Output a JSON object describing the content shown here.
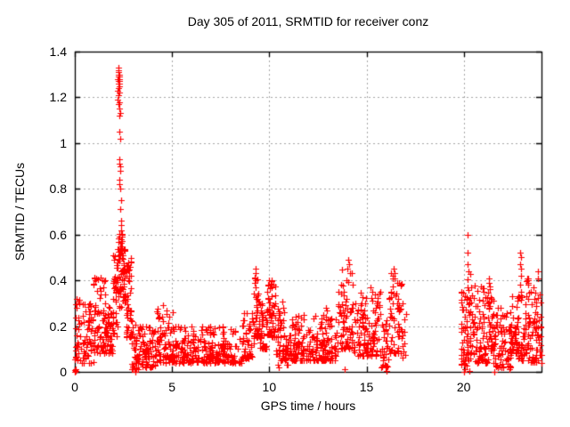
{
  "chart_data": {
    "type": "scatter",
    "title": "Day 305 of 2011, SRMTID for receiver conz",
    "xlabel": "GPS time / hours",
    "ylabel": "SRMTID / TECUs",
    "xlim": [
      0,
      24
    ],
    "ylim": [
      0,
      1.4
    ],
    "xticks": [
      [
        0,
        "0"
      ],
      [
        5,
        "5"
      ],
      [
        10,
        "10"
      ],
      [
        15,
        "15"
      ],
      [
        20,
        "20"
      ]
    ],
    "yticks": [
      [
        0,
        "0"
      ],
      [
        0.2,
        "0.2"
      ],
      [
        0.4,
        "0.4"
      ],
      [
        0.6,
        "0.6"
      ],
      [
        0.8,
        "0.8"
      ],
      [
        1,
        "1"
      ],
      [
        1.2,
        "1.2"
      ],
      [
        1.4,
        "1.4"
      ]
    ],
    "grid": true,
    "legend": "none",
    "marker": {
      "symbol": "plus",
      "color": "#ff0000",
      "size": 7,
      "stroke": 1.2
    },
    "data_gaps": [
      [
        17.0,
        19.85
      ]
    ],
    "seed": 7,
    "band_segments": [
      [
        0.0,
        0.35,
        30,
        0.05,
        0.33,
        1.5
      ],
      [
        0.35,
        0.95,
        55,
        0.04,
        0.3,
        1.8
      ],
      [
        0.95,
        1.6,
        70,
        0.08,
        0.42,
        1.8
      ],
      [
        1.6,
        1.95,
        40,
        0.08,
        0.3,
        1.5
      ],
      [
        1.95,
        2.18,
        35,
        0.15,
        0.52,
        1.3
      ],
      [
        2.18,
        2.42,
        40,
        0.28,
        0.62,
        1.2
      ],
      [
        2.42,
        2.62,
        35,
        0.3,
        0.55,
        1.2
      ],
      [
        2.62,
        2.92,
        45,
        0.15,
        0.5,
        1.4
      ],
      [
        2.92,
        3.35,
        45,
        0.01,
        0.22,
        1.5
      ],
      [
        3.35,
        4.2,
        70,
        0.02,
        0.2,
        1.6
      ],
      [
        4.2,
        5.05,
        75,
        0.04,
        0.3,
        1.8
      ],
      [
        5.05,
        8.6,
        260,
        0.04,
        0.2,
        1.8
      ],
      [
        8.6,
        9.2,
        50,
        0.06,
        0.26,
        1.6
      ],
      [
        9.2,
        9.5,
        35,
        0.15,
        0.44,
        1.4
      ],
      [
        9.5,
        9.85,
        35,
        0.1,
        0.3,
        1.5
      ],
      [
        9.85,
        10.35,
        60,
        0.15,
        0.4,
        1.5
      ],
      [
        10.35,
        10.75,
        40,
        0.05,
        0.33,
        1.6
      ],
      [
        10.75,
        11.15,
        35,
        0.03,
        0.17,
        1.5
      ],
      [
        11.15,
        13.55,
        190,
        0.05,
        0.25,
        1.8
      ],
      [
        13.55,
        14.35,
        70,
        0.1,
        0.46,
        1.7
      ],
      [
        14.35,
        15.1,
        65,
        0.07,
        0.35,
        1.7
      ],
      [
        15.1,
        15.75,
        55,
        0.07,
        0.37,
        1.7
      ],
      [
        15.75,
        16.15,
        35,
        0.02,
        0.25,
        1.6
      ],
      [
        16.15,
        16.8,
        60,
        0.08,
        0.44,
        1.5
      ],
      [
        16.8,
        17.05,
        12,
        0.03,
        0.3,
        1.5
      ],
      [
        19.85,
        20.15,
        40,
        0.01,
        0.36,
        1.4
      ],
      [
        20.15,
        20.45,
        40,
        0.05,
        0.45,
        1.5
      ],
      [
        20.45,
        21.25,
        80,
        0.04,
        0.38,
        1.6
      ],
      [
        21.25,
        21.5,
        30,
        0.08,
        0.4,
        1.5
      ],
      [
        21.5,
        22.45,
        85,
        0.02,
        0.33,
        1.6
      ],
      [
        22.45,
        22.8,
        45,
        0.08,
        0.35,
        1.5
      ],
      [
        22.8,
        23.45,
        65,
        0.05,
        0.4,
        1.5
      ],
      [
        23.45,
        24.0,
        60,
        0.04,
        0.38,
        1.6
      ]
    ],
    "highlight_points": [
      [
        2.21,
        1.28
      ],
      [
        2.23,
        1.32
      ],
      [
        2.24,
        1.3
      ],
      [
        2.25,
        1.26
      ],
      [
        2.26,
        1.31
      ],
      [
        2.27,
        1.22
      ],
      [
        2.22,
        1.19
      ],
      [
        2.28,
        1.27
      ],
      [
        2.24,
        1.24
      ],
      [
        2.29,
        1.29
      ],
      [
        2.25,
        1.33
      ],
      [
        2.23,
        1.21
      ],
      [
        2.27,
        1.3
      ],
      [
        2.3,
        1.26
      ],
      [
        2.26,
        1.17
      ],
      [
        2.21,
        1.23
      ],
      [
        2.29,
        1.18
      ],
      [
        2.24,
        1.27
      ],
      [
        2.28,
        1.25
      ],
      [
        2.25,
        1.29
      ],
      [
        2.31,
        1.15
      ],
      [
        2.33,
        1.13
      ],
      [
        2.26,
        1.24
      ],
      [
        2.27,
        1.28
      ],
      [
        2.29,
        1.12
      ],
      [
        2.31,
        1.05
      ],
      [
        2.32,
        1.02
      ],
      [
        2.29,
        0.93
      ],
      [
        2.3,
        0.91
      ],
      [
        2.32,
        0.9
      ],
      [
        2.33,
        0.88
      ],
      [
        2.29,
        0.84
      ],
      [
        2.31,
        0.82
      ],
      [
        2.34,
        0.8
      ],
      [
        2.36,
        0.75
      ],
      [
        2.35,
        0.71
      ],
      [
        2.37,
        0.66
      ],
      [
        2.39,
        0.64
      ],
      [
        2.4,
        0.62
      ],
      [
        2.41,
        0.6
      ],
      [
        2.38,
        0.58
      ],
      [
        2.42,
        0.57
      ],
      [
        2.43,
        0.55
      ],
      [
        2.44,
        0.53
      ],
      [
        1.0,
        0.41
      ],
      [
        1.05,
        0.4
      ],
      [
        0.95,
        0.38
      ],
      [
        1.45,
        0.37
      ],
      [
        9.3,
        0.45
      ],
      [
        9.32,
        0.43
      ],
      [
        9.28,
        0.4
      ],
      [
        9.31,
        0.37
      ],
      [
        9.95,
        0.38
      ],
      [
        10.0,
        0.4
      ],
      [
        10.45,
        0.03
      ],
      [
        10.5,
        0.02
      ],
      [
        12.9,
        0.28
      ],
      [
        12.95,
        0.27
      ],
      [
        14.05,
        0.49
      ],
      [
        14.1,
        0.47
      ],
      [
        14.0,
        0.45
      ],
      [
        14.15,
        0.43
      ],
      [
        15.2,
        0.37
      ],
      [
        16.4,
        0.45
      ],
      [
        16.45,
        0.43
      ],
      [
        16.42,
        0.41
      ],
      [
        20.2,
        0.6
      ],
      [
        20.21,
        0.52
      ],
      [
        20.18,
        0.47
      ],
      [
        20.23,
        0.44
      ],
      [
        21.3,
        0.41
      ],
      [
        21.32,
        0.39
      ],
      [
        22.92,
        0.52
      ],
      [
        22.94,
        0.5
      ],
      [
        22.9,
        0.47
      ],
      [
        22.95,
        0.45
      ],
      [
        22.93,
        0.42
      ],
      [
        23.28,
        0.4
      ],
      [
        23.3,
        0.4
      ],
      [
        23.32,
        0.41
      ],
      [
        23.3,
        0.39
      ],
      [
        23.33,
        0.4
      ],
      [
        23.29,
        0.41
      ],
      [
        23.8,
        0.44
      ],
      [
        23.82,
        0.41
      ],
      [
        0.02,
        0.0
      ],
      [
        0.03,
        0.005
      ],
      [
        0.02,
        0.008
      ],
      [
        0.04,
        0.003
      ],
      [
        0.05,
        0.01
      ],
      [
        3.05,
        0.01
      ],
      [
        3.1,
        0.0
      ],
      [
        3.18,
        0.015
      ],
      [
        13.9,
        0.01
      ],
      [
        16.05,
        0.005
      ],
      [
        20.0,
        0.0
      ],
      [
        20.05,
        0.01
      ],
      [
        20.3,
        0.005
      ],
      [
        21.55,
        0.0
      ],
      [
        22.35,
        0.01
      ]
    ]
  },
  "colors": {
    "marker": "#ff0000",
    "grid": "#a5a5a5",
    "axis": "#000000",
    "background": "#ffffff",
    "text": "#000000"
  }
}
